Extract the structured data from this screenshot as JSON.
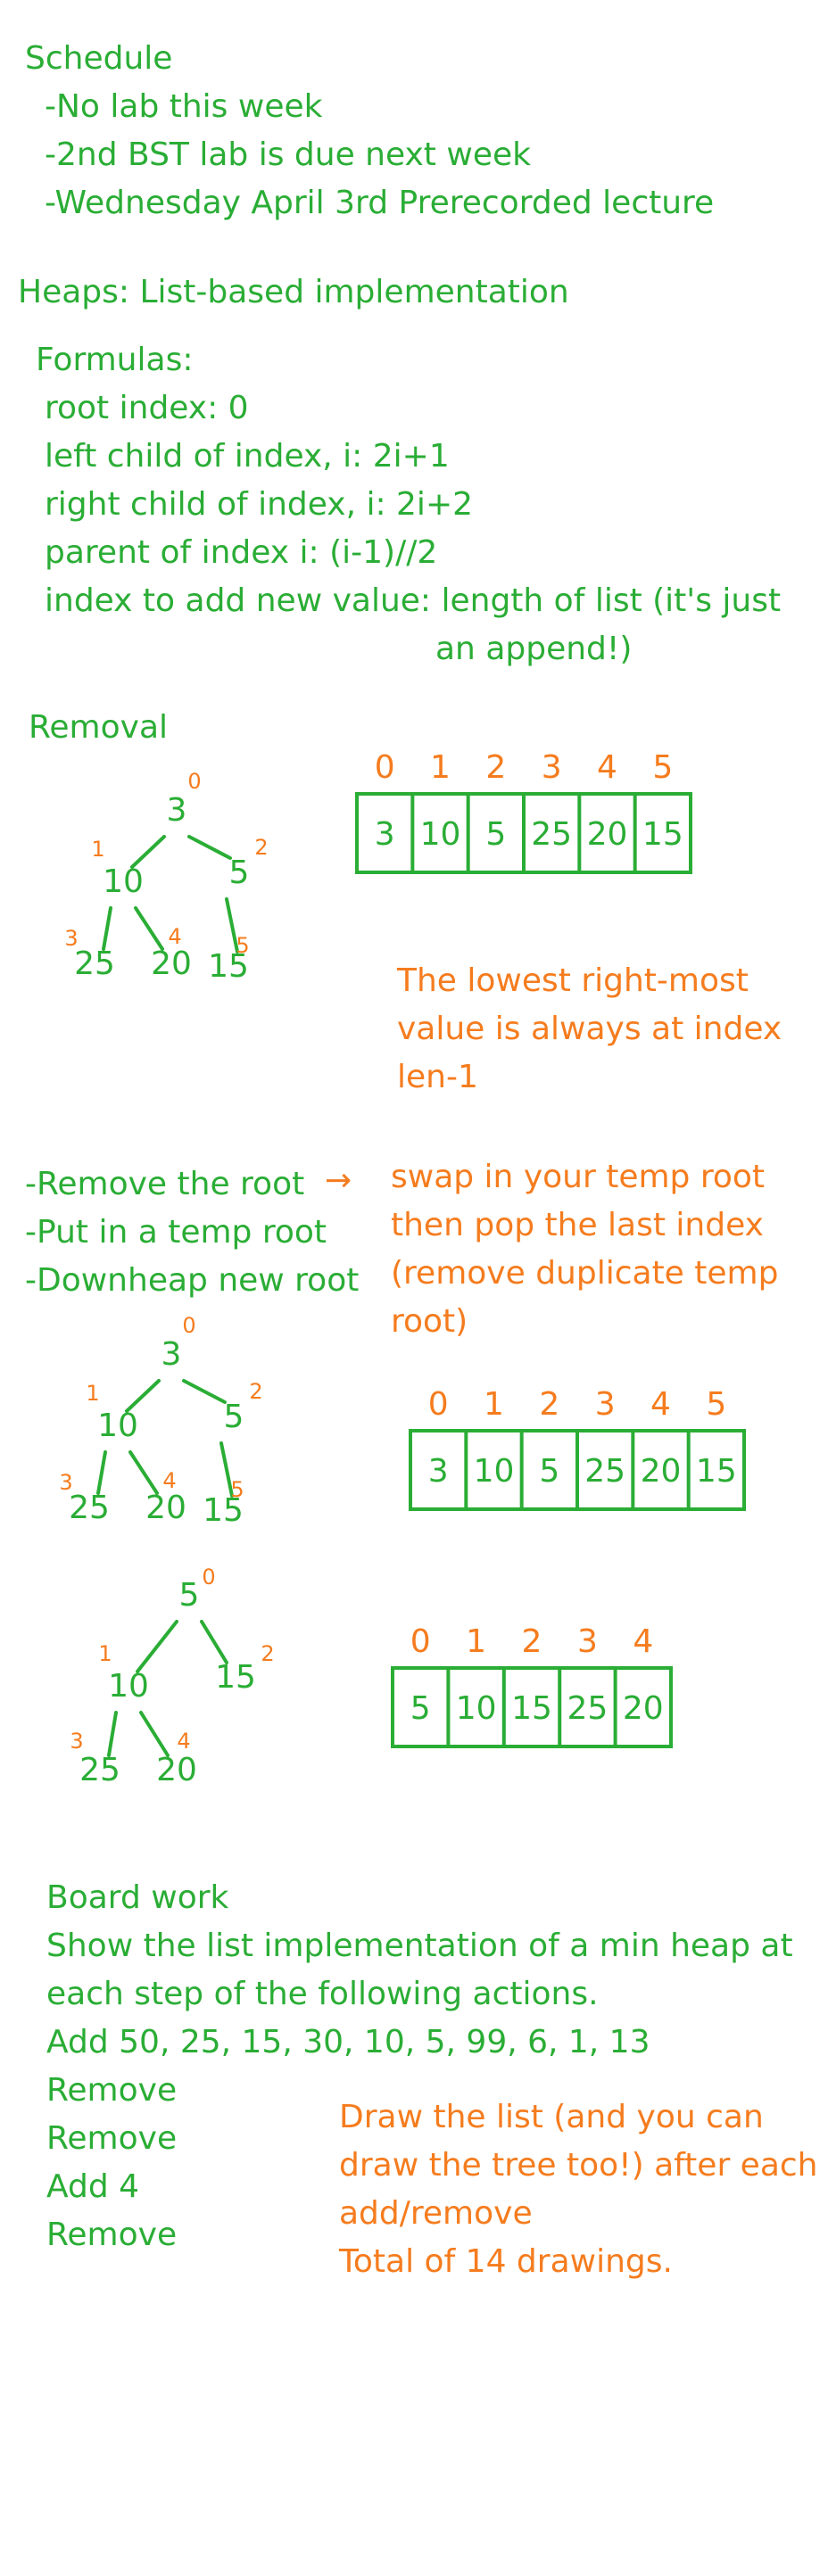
{
  "colors": {
    "green": "#2aad35",
    "orange": "#f57c1e"
  },
  "schedule": {
    "title": "Schedule",
    "items": [
      "-No lab this week",
      "-2nd BST lab is due next week",
      "-Wednesday April 3rd Prerecorded lecture"
    ]
  },
  "heaps": {
    "title": "Heaps: List-based implementation",
    "formulas_title": "Formulas:",
    "formulas": [
      "root index: 0",
      "left child of index, i: 2i+1",
      "right child of index, i: 2i+2",
      "parent of index i: (i-1)//2",
      "index to add new value:  length of list (it's just"
    ],
    "formula_continuation": "an append!)"
  },
  "removal": {
    "title": "Removal",
    "note": [
      "The lowest right-most",
      "value is always at index",
      "len-1"
    ],
    "steps": [
      "-Remove the root",
      "-Put in a temp root",
      "-Downheap new root"
    ],
    "arrow": "→",
    "swap_note": [
      "swap in your temp root",
      "then pop the last index",
      "(remove duplicate temp",
      "root)"
    ],
    "diagrams": [
      {
        "tree": {
          "values": [
            "3",
            "10",
            "5",
            "25",
            "20",
            "15"
          ],
          "labels": [
            "0",
            "1",
            "2",
            "3",
            "4",
            "5"
          ]
        },
        "list": {
          "indices": [
            "0",
            "1",
            "2",
            "3",
            "4",
            "5"
          ],
          "values": [
            "3",
            "10",
            "5",
            "25",
            "20",
            "15"
          ]
        }
      },
      {
        "tree": {
          "values": [
            "3",
            "10",
            "5",
            "25",
            "20",
            "15"
          ],
          "labels": [
            "0",
            "1",
            "2",
            "3",
            "4",
            "5"
          ]
        },
        "list": {
          "indices": [
            "0",
            "1",
            "2",
            "3",
            "4",
            "5"
          ],
          "values": [
            "3",
            "10",
            "5",
            "25",
            "20",
            "15"
          ]
        }
      },
      {
        "tree": {
          "values": [
            "5",
            "10",
            "15",
            "25",
            "20"
          ],
          "labels": [
            "0",
            "1",
            "2",
            "3",
            "4"
          ]
        },
        "list": {
          "indices": [
            "0",
            "1",
            "2",
            "3",
            "4"
          ],
          "values": [
            "5",
            "10",
            "15",
            "25",
            "20"
          ]
        }
      }
    ]
  },
  "board": {
    "title": "Board work",
    "lines": [
      "Show the list implementation of a min heap at",
      "each step of the following actions.",
      "Add 50, 25, 15, 30, 10, 5, 99, 6, 1, 13",
      "Remove",
      "Remove",
      "Add 4",
      "Remove"
    ],
    "note": [
      "Draw the list (and you can",
      "draw the tree too!) after each",
      "add/remove",
      "Total of 14 drawings."
    ]
  }
}
